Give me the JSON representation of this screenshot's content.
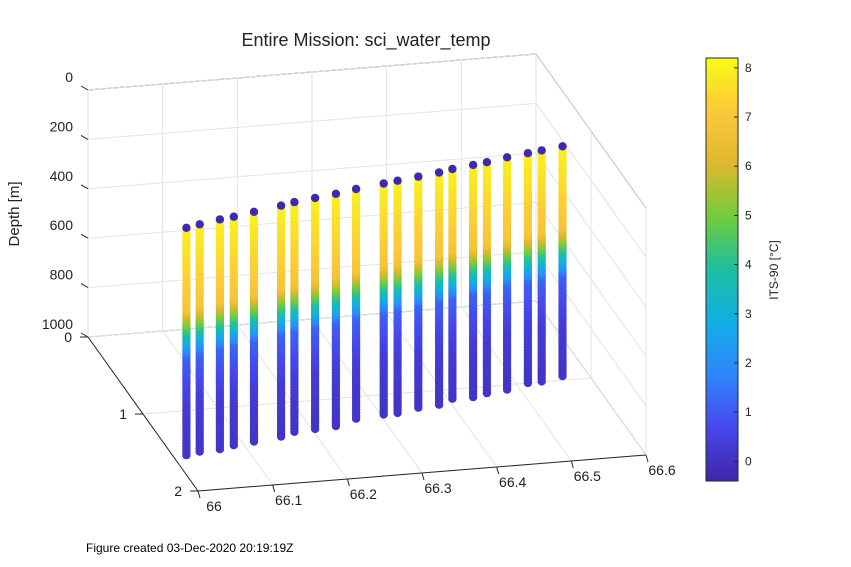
{
  "chart_data": {
    "type": "scatter3d",
    "title": "Entire Mission: sci_water_temp",
    "zlabel": "Depth [m]",
    "xlabel": "",
    "ylabel": "",
    "xlim": [
      66,
      66.6
    ],
    "ylim": [
      0,
      2
    ],
    "zlim": [
      0,
      1000
    ],
    "z_direction": "reverse",
    "x_ticks": [
      "66",
      "66.1",
      "66.2",
      "66.3",
      "66.4",
      "66.5",
      "66.6"
    ],
    "y_ticks": [
      "0",
      "1",
      "2"
    ],
    "z_ticks": [
      "0",
      "200",
      "400",
      "600",
      "800",
      "1000"
    ],
    "grid": true,
    "colorbar": {
      "label": "ITS-90 [°C]",
      "ticks": [
        "0",
        "1",
        "2",
        "3",
        "4",
        "5",
        "6",
        "7",
        "8"
      ],
      "range": [
        -0.4,
        8.2
      ],
      "colormap": "parula"
    },
    "profiles": [
      {
        "x": 66.0,
        "y": 1.79,
        "depth_max": 920
      },
      {
        "x": 66.02,
        "y": 1.76,
        "depth_max": 920
      },
      {
        "x": 66.05,
        "y": 1.72,
        "depth_max": 930
      },
      {
        "x": 66.07,
        "y": 1.7,
        "depth_max": 925
      },
      {
        "x": 66.1,
        "y": 1.66,
        "depth_max": 930
      },
      {
        "x": 66.14,
        "y": 1.61,
        "depth_max": 935
      },
      {
        "x": 66.16,
        "y": 1.58,
        "depth_max": 930
      },
      {
        "x": 66.19,
        "y": 1.55,
        "depth_max": 935
      },
      {
        "x": 66.22,
        "y": 1.52,
        "depth_max": 940
      },
      {
        "x": 66.25,
        "y": 1.48,
        "depth_max": 930
      },
      {
        "x": 66.29,
        "y": 1.44,
        "depth_max": 935
      },
      {
        "x": 66.31,
        "y": 1.42,
        "depth_max": 940
      },
      {
        "x": 66.34,
        "y": 1.39,
        "depth_max": 935
      },
      {
        "x": 66.37,
        "y": 1.36,
        "depth_max": 940
      },
      {
        "x": 66.39,
        "y": 1.33,
        "depth_max": 930
      },
      {
        "x": 66.42,
        "y": 1.3,
        "depth_max": 940
      },
      {
        "x": 66.44,
        "y": 1.28,
        "depth_max": 935
      },
      {
        "x": 66.47,
        "y": 1.24,
        "depth_max": 940
      },
      {
        "x": 66.5,
        "y": 1.21,
        "depth_max": 930
      },
      {
        "x": 66.52,
        "y": 1.19,
        "depth_max": 935
      },
      {
        "x": 66.55,
        "y": 1.16,
        "depth_max": 930
      }
    ]
  },
  "footer": {
    "text": "Figure created 03-Dec-2020 20:19:19Z"
  }
}
